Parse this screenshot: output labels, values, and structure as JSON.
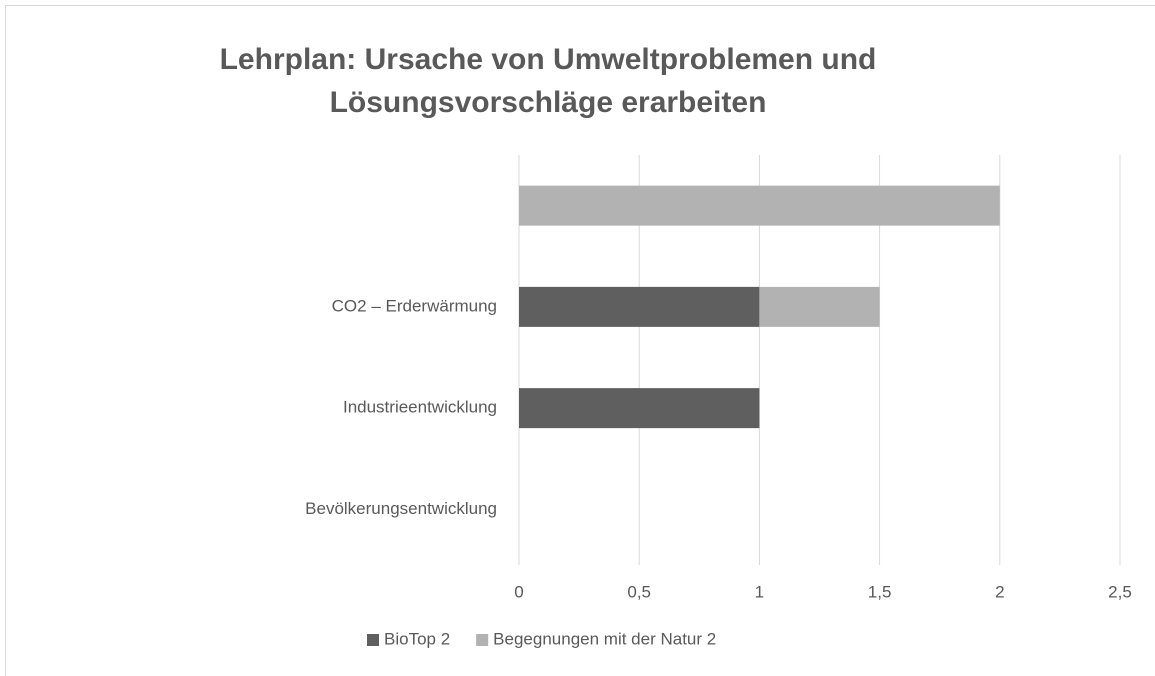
{
  "chart_data": {
    "type": "stacked-bar-horizontal",
    "title": "Lehrplan: Ursache von Umweltproblemen und Lösungsvorschläge erarbeiten",
    "categories": [
      null,
      "CO2 – Erderwärmung",
      "Industrieentwicklung",
      "Bevölkerungsentwicklung"
    ],
    "series": [
      {
        "name": "BioTop 2",
        "color": "#5f5f5f",
        "values": [
          0,
          1,
          1,
          0
        ]
      },
      {
        "name": "Begegnungen mit der Natur 2",
        "color": "#b2b2b2",
        "values": [
          2,
          0.5,
          0,
          0
        ]
      }
    ],
    "xlim": [
      0,
      2.5
    ],
    "xticks": [
      0,
      {
        "value": 0.5,
        "label": "0,5"
      },
      1,
      {
        "value": 1.5,
        "label": "1,5"
      },
      2,
      {
        "value": 2.5,
        "label": "2,5"
      }
    ],
    "grid": true,
    "legend": "bottom"
  }
}
